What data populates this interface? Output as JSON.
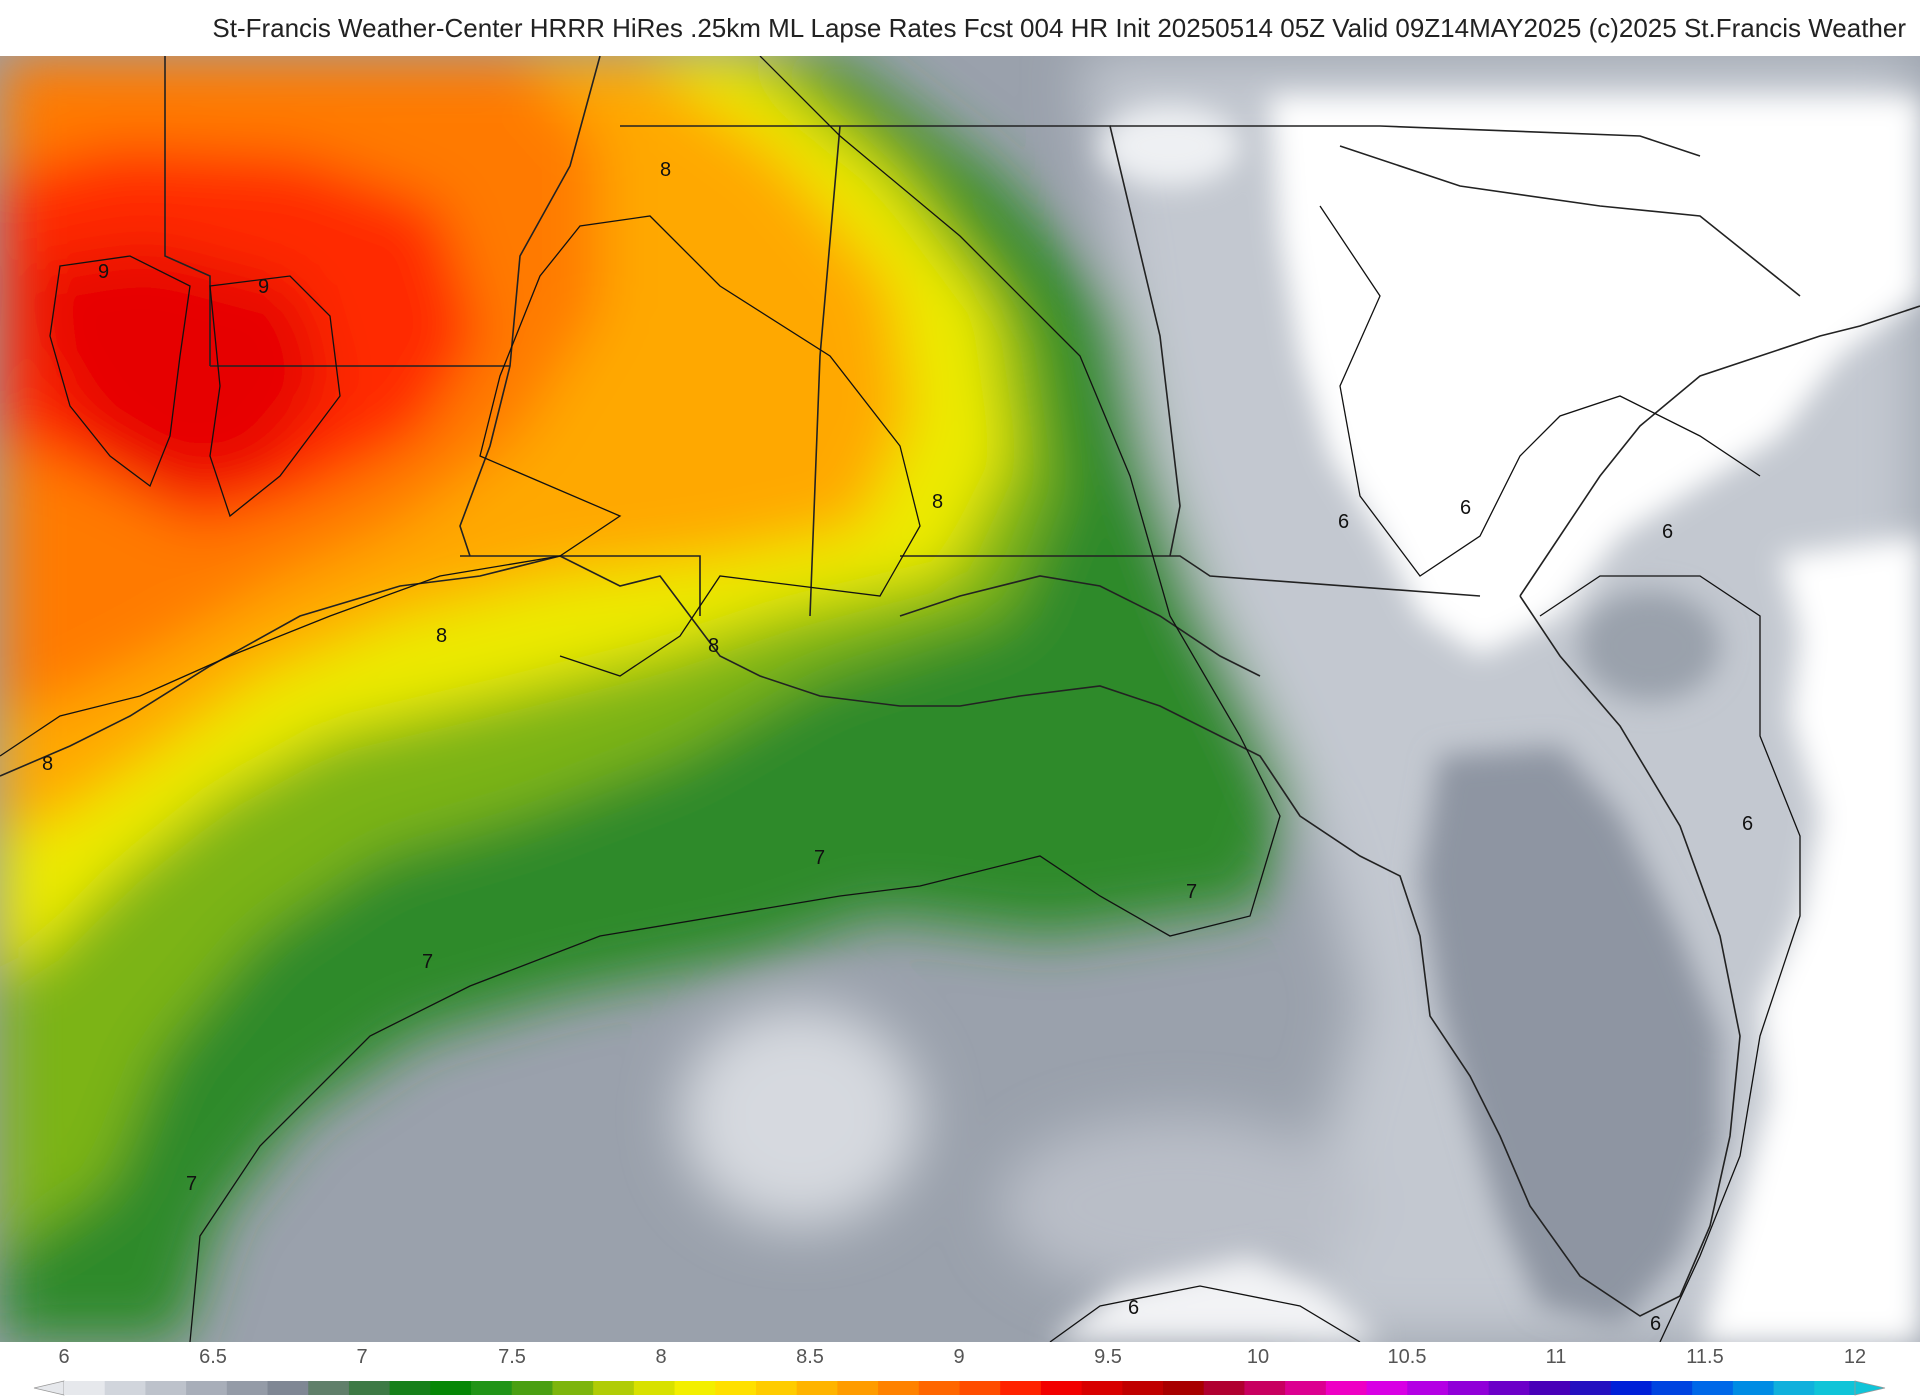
{
  "header": {
    "title": "St-Francis Weather-Center HRRR HiRes .25km ML Lapse Rates  Fcst 004 HR Init 20250514 05Z  Valid 09Z14MAY2025   (c)2025 St.Francis Weather"
  },
  "map": {
    "contour_labels": [
      {
        "value": "9"
      },
      {
        "value": "9"
      },
      {
        "value": "8"
      },
      {
        "value": "8"
      },
      {
        "value": "8"
      },
      {
        "value": "8"
      },
      {
        "value": "8"
      },
      {
        "value": "7"
      },
      {
        "value": "7"
      },
      {
        "value": "7"
      },
      {
        "value": "7"
      },
      {
        "value": "6"
      },
      {
        "value": "6"
      },
      {
        "value": "6"
      },
      {
        "value": "6"
      },
      {
        "value": "6"
      },
      {
        "value": "6"
      }
    ]
  },
  "colorbar": {
    "ticks": [
      "6",
      "6.5",
      "7",
      "7.5",
      "8",
      "8.5",
      "9",
      "9.5",
      "10",
      "10.5",
      "11",
      "11.5",
      "12"
    ],
    "colors": [
      "#e6e8ec",
      "#d1d5dc",
      "#bdc2cb",
      "#a8aeb9",
      "#949ba7",
      "#7f8794",
      "#607f6a",
      "#3d7a45",
      "#16801a",
      "#068706",
      "#219417",
      "#4a9f12",
      "#7db50c",
      "#b0cc06",
      "#d8e100",
      "#f3ef00",
      "#ffe000",
      "#ffcc00",
      "#ffb400",
      "#ff9c00",
      "#ff8200",
      "#ff6600",
      "#ff4d00",
      "#ff2200",
      "#f20000",
      "#d80000",
      "#c00000",
      "#a80000",
      "#b00030",
      "#c80060",
      "#dc0090",
      "#ee00c4",
      "#d800e4",
      "#b400e4",
      "#9000d8",
      "#6c00c8",
      "#4800b8",
      "#2410c0",
      "#0020d8",
      "#0044e0",
      "#0068e8",
      "#008ce4",
      "#10b0dc",
      "#10c4d8"
    ]
  }
}
